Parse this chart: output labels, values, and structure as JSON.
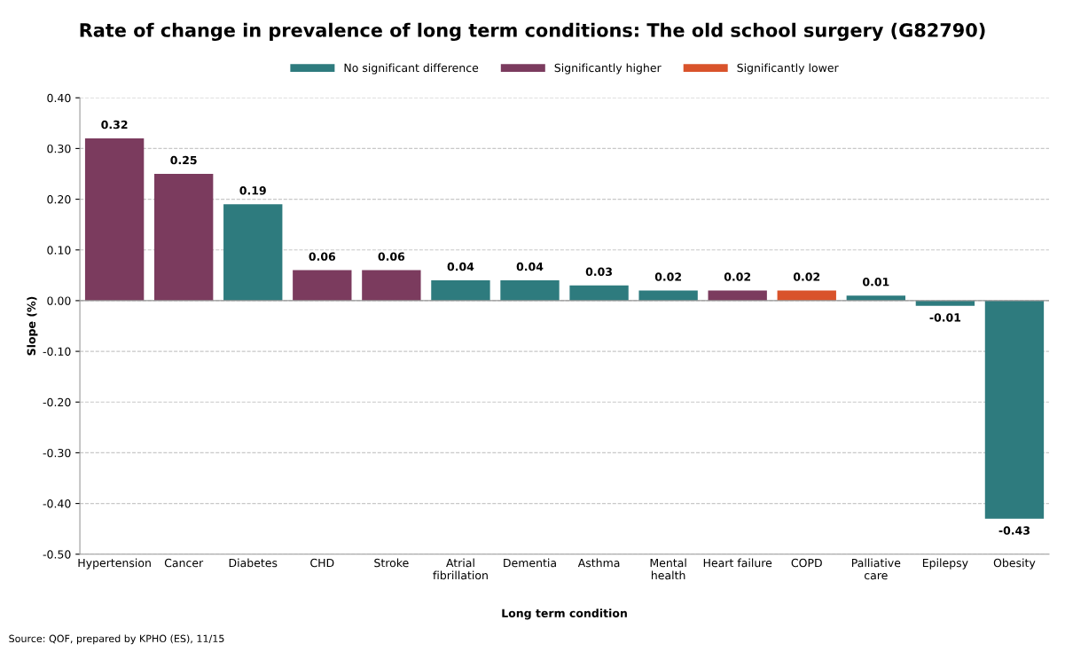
{
  "chart_data": {
    "type": "bar",
    "title": "Rate of change in prevalence of long term conditions: The old school surgery (G82790)",
    "xlabel": "Long term condition",
    "ylabel": "Slope (%)",
    "categories": [
      "Hypertension",
      "Cancer",
      "Diabetes",
      "CHD",
      "Stroke",
      "Atrial\nfibrillation",
      "Dementia",
      "Asthma",
      "Mental\nhealth",
      "Heart failure",
      "COPD",
      "Palliative\ncare",
      "Epilepsy",
      "Obesity"
    ],
    "stacked": true,
    "series": [
      {
        "name": "No significant difference",
        "color": "#2e7b7e",
        "values": [
          null,
          null,
          0.19,
          null,
          null,
          0.04,
          0.04,
          0.03,
          0.02,
          null,
          null,
          0.01,
          -0.01,
          -0.43
        ]
      },
      {
        "name": "Significantly higher",
        "color": "#7b3b5e",
        "values": [
          0.32,
          0.25,
          null,
          0.06,
          0.06,
          null,
          null,
          null,
          null,
          0.02,
          null,
          null,
          null,
          null
        ]
      },
      {
        "name": "Significantly lower",
        "color": "#d9532b",
        "values": [
          null,
          null,
          null,
          null,
          null,
          null,
          null,
          null,
          null,
          null,
          0.02,
          null,
          null,
          null
        ]
      }
    ],
    "ylim": [
      -0.5,
      0.4
    ],
    "yticks": [
      {
        "value": -0.5,
        "label": "-0.50"
      },
      {
        "value": -0.4,
        "label": "-0.40"
      },
      {
        "value": -0.3,
        "label": "-0.30"
      },
      {
        "value": -0.2,
        "label": "-0.20"
      },
      {
        "value": -0.1,
        "label": "-0.10"
      },
      {
        "value": 0,
        "label": "0.00"
      },
      {
        "value": 0.1,
        "label": "0.10"
      },
      {
        "value": 0.2,
        "label": "0.20"
      },
      {
        "value": 0.3,
        "label": "0.30"
      },
      {
        "value": 0.4,
        "label": "0.40"
      }
    ],
    "grid": "y",
    "legend": "top",
    "data_labels": true,
    "annotations": [
      "Source: QOF, prepared by KPHO (ES), 11/15"
    ]
  }
}
